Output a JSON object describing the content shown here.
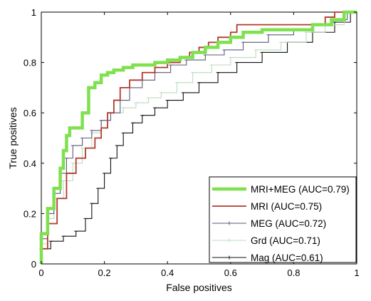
{
  "chart_data": {
    "type": "line",
    "title": "",
    "xlabel": "False positives",
    "ylabel": "True positives",
    "xlim": [
      0,
      1
    ],
    "ylim": [
      0,
      1
    ],
    "x_ticks": [
      0,
      0.2,
      0.4,
      0.6,
      0.8,
      1
    ],
    "x_tick_labels": [
      "0",
      "0.2",
      "0.4",
      "0.6",
      "0.8",
      "1"
    ],
    "y_ticks": [
      0,
      0.2,
      0.4,
      0.6,
      0.8,
      1
    ],
    "y_tick_labels": [
      "0",
      "0.2",
      "0.4",
      "0.6",
      "0.8",
      "1"
    ],
    "grid": false,
    "legend_position": "bottom-right",
    "series": [
      {
        "name": "MRI+MEG (AUC=0.79)",
        "color": "#7fe050",
        "style": "thick",
        "x": [
          0,
          0,
          0.02,
          0.02,
          0.04,
          0.04,
          0.06,
          0.06,
          0.07,
          0.07,
          0.08,
          0.08,
          0.09,
          0.09,
          0.1,
          0.1,
          0.13,
          0.13,
          0.15,
          0.15,
          0.17,
          0.17,
          0.19,
          0.19,
          0.21,
          0.21,
          0.23,
          0.23,
          0.26,
          0.26,
          0.29,
          0.29,
          0.32,
          0.32,
          0.36,
          0.36,
          0.4,
          0.4,
          0.44,
          0.44,
          0.48,
          0.48,
          0.52,
          0.52,
          0.56,
          0.56,
          0.6,
          0.6,
          0.64,
          0.64,
          0.7,
          0.7,
          0.8,
          0.8,
          0.86,
          0.86,
          0.92,
          0.92,
          0.96,
          0.96,
          1
        ],
        "y": [
          0,
          0.12,
          0.12,
          0.22,
          0.22,
          0.3,
          0.3,
          0.38,
          0.38,
          0.45,
          0.45,
          0.51,
          0.51,
          0.54,
          0.54,
          0.54,
          0.54,
          0.6,
          0.6,
          0.7,
          0.7,
          0.72,
          0.72,
          0.75,
          0.75,
          0.76,
          0.76,
          0.77,
          0.77,
          0.78,
          0.78,
          0.79,
          0.79,
          0.79,
          0.79,
          0.8,
          0.8,
          0.81,
          0.81,
          0.82,
          0.82,
          0.84,
          0.84,
          0.86,
          0.86,
          0.88,
          0.88,
          0.9,
          0.9,
          0.92,
          0.92,
          0.93,
          0.93,
          0.93,
          0.93,
          0.95,
          0.95,
          0.97,
          0.97,
          1,
          1
        ]
      },
      {
        "name": "MRI (AUC=0.75)",
        "color": "#b03a2e",
        "style": "medium",
        "x": [
          0,
          0,
          0.02,
          0.02,
          0.05,
          0.05,
          0.08,
          0.08,
          0.11,
          0.11,
          0.14,
          0.14,
          0.17,
          0.17,
          0.19,
          0.19,
          0.21,
          0.21,
          0.23,
          0.23,
          0.25,
          0.25,
          0.28,
          0.28,
          0.32,
          0.32,
          0.36,
          0.36,
          0.4,
          0.4,
          0.44,
          0.44,
          0.47,
          0.47,
          0.5,
          0.5,
          0.53,
          0.53,
          0.56,
          0.56,
          0.6,
          0.6,
          0.62,
          0.62,
          0.65,
          0.65,
          0.9,
          0.9,
          0.93,
          0.93,
          1
        ],
        "y": [
          0,
          0.06,
          0.06,
          0.16,
          0.16,
          0.26,
          0.26,
          0.36,
          0.36,
          0.42,
          0.42,
          0.46,
          0.46,
          0.5,
          0.5,
          0.54,
          0.54,
          0.6,
          0.6,
          0.65,
          0.65,
          0.7,
          0.7,
          0.73,
          0.73,
          0.76,
          0.76,
          0.78,
          0.78,
          0.8,
          0.8,
          0.82,
          0.82,
          0.84,
          0.84,
          0.86,
          0.86,
          0.88,
          0.88,
          0.9,
          0.9,
          0.92,
          0.92,
          0.95,
          0.95,
          0.95,
          0.95,
          0.98,
          0.98,
          1,
          1
        ]
      },
      {
        "name": "MEG (AUC=0.72)",
        "color": "#5a5a78",
        "style": "thin-markers",
        "x": [
          0,
          0,
          0.02,
          0.02,
          0.04,
          0.04,
          0.06,
          0.06,
          0.08,
          0.08,
          0.1,
          0.1,
          0.13,
          0.13,
          0.16,
          0.16,
          0.19,
          0.19,
          0.22,
          0.22,
          0.25,
          0.25,
          0.28,
          0.28,
          0.32,
          0.32,
          0.36,
          0.36,
          0.41,
          0.41,
          0.46,
          0.46,
          0.52,
          0.52,
          0.58,
          0.58,
          0.64,
          0.64,
          0.72,
          0.72,
          0.8,
          0.8,
          0.86,
          0.86,
          0.92,
          0.92,
          0.97,
          0.97,
          1
        ],
        "y": [
          0,
          0.1,
          0.1,
          0.2,
          0.2,
          0.28,
          0.28,
          0.36,
          0.36,
          0.42,
          0.42,
          0.47,
          0.47,
          0.5,
          0.5,
          0.53,
          0.53,
          0.57,
          0.57,
          0.6,
          0.6,
          0.65,
          0.65,
          0.7,
          0.7,
          0.73,
          0.73,
          0.76,
          0.76,
          0.79,
          0.79,
          0.81,
          0.81,
          0.83,
          0.83,
          0.85,
          0.85,
          0.88,
          0.88,
          0.91,
          0.91,
          0.93,
          0.93,
          0.95,
          0.95,
          0.97,
          0.97,
          1,
          1
        ]
      },
      {
        "name": "Grd (AUC=0.71)",
        "color": "#b8dcc0",
        "style": "thin-markers",
        "x": [
          0,
          0,
          0.02,
          0.02,
          0.04,
          0.04,
          0.07,
          0.07,
          0.1,
          0.1,
          0.13,
          0.13,
          0.16,
          0.16,
          0.19,
          0.19,
          0.22,
          0.22,
          0.26,
          0.26,
          0.3,
          0.3,
          0.34,
          0.34,
          0.38,
          0.38,
          0.43,
          0.43,
          0.48,
          0.48,
          0.54,
          0.54,
          0.6,
          0.6,
          0.68,
          0.68,
          0.76,
          0.76,
          0.84,
          0.84,
          0.9,
          0.9,
          0.96,
          0.96,
          1
        ],
        "y": [
          0,
          0.08,
          0.08,
          0.18,
          0.18,
          0.26,
          0.26,
          0.33,
          0.33,
          0.4,
          0.4,
          0.46,
          0.46,
          0.52,
          0.52,
          0.57,
          0.57,
          0.6,
          0.6,
          0.62,
          0.62,
          0.64,
          0.64,
          0.66,
          0.66,
          0.68,
          0.68,
          0.72,
          0.72,
          0.76,
          0.76,
          0.79,
          0.79,
          0.82,
          0.82,
          0.85,
          0.85,
          0.88,
          0.88,
          0.92,
          0.92,
          0.95,
          0.95,
          1,
          1
        ]
      },
      {
        "name": "Mag (AUC=0.61)",
        "color": "#101010",
        "style": "thin-markers",
        "x": [
          0,
          0,
          0.03,
          0.03,
          0.07,
          0.07,
          0.11,
          0.11,
          0.14,
          0.14,
          0.16,
          0.16,
          0.18,
          0.18,
          0.2,
          0.2,
          0.22,
          0.22,
          0.24,
          0.24,
          0.26,
          0.26,
          0.29,
          0.29,
          0.32,
          0.32,
          0.36,
          0.36,
          0.4,
          0.4,
          0.45,
          0.45,
          0.5,
          0.5,
          0.56,
          0.56,
          0.62,
          0.62,
          0.7,
          0.7,
          0.78,
          0.78,
          0.86,
          0.86,
          0.93,
          0.93,
          0.98,
          0.98,
          1
        ],
        "y": [
          0,
          0.06,
          0.06,
          0.09,
          0.09,
          0.11,
          0.11,
          0.13,
          0.13,
          0.18,
          0.18,
          0.24,
          0.24,
          0.3,
          0.3,
          0.36,
          0.36,
          0.42,
          0.42,
          0.47,
          0.47,
          0.52,
          0.52,
          0.56,
          0.56,
          0.59,
          0.59,
          0.62,
          0.62,
          0.65,
          0.65,
          0.68,
          0.68,
          0.72,
          0.72,
          0.76,
          0.76,
          0.8,
          0.8,
          0.84,
          0.84,
          0.88,
          0.88,
          0.92,
          0.92,
          0.96,
          0.96,
          1,
          1
        ]
      }
    ]
  }
}
